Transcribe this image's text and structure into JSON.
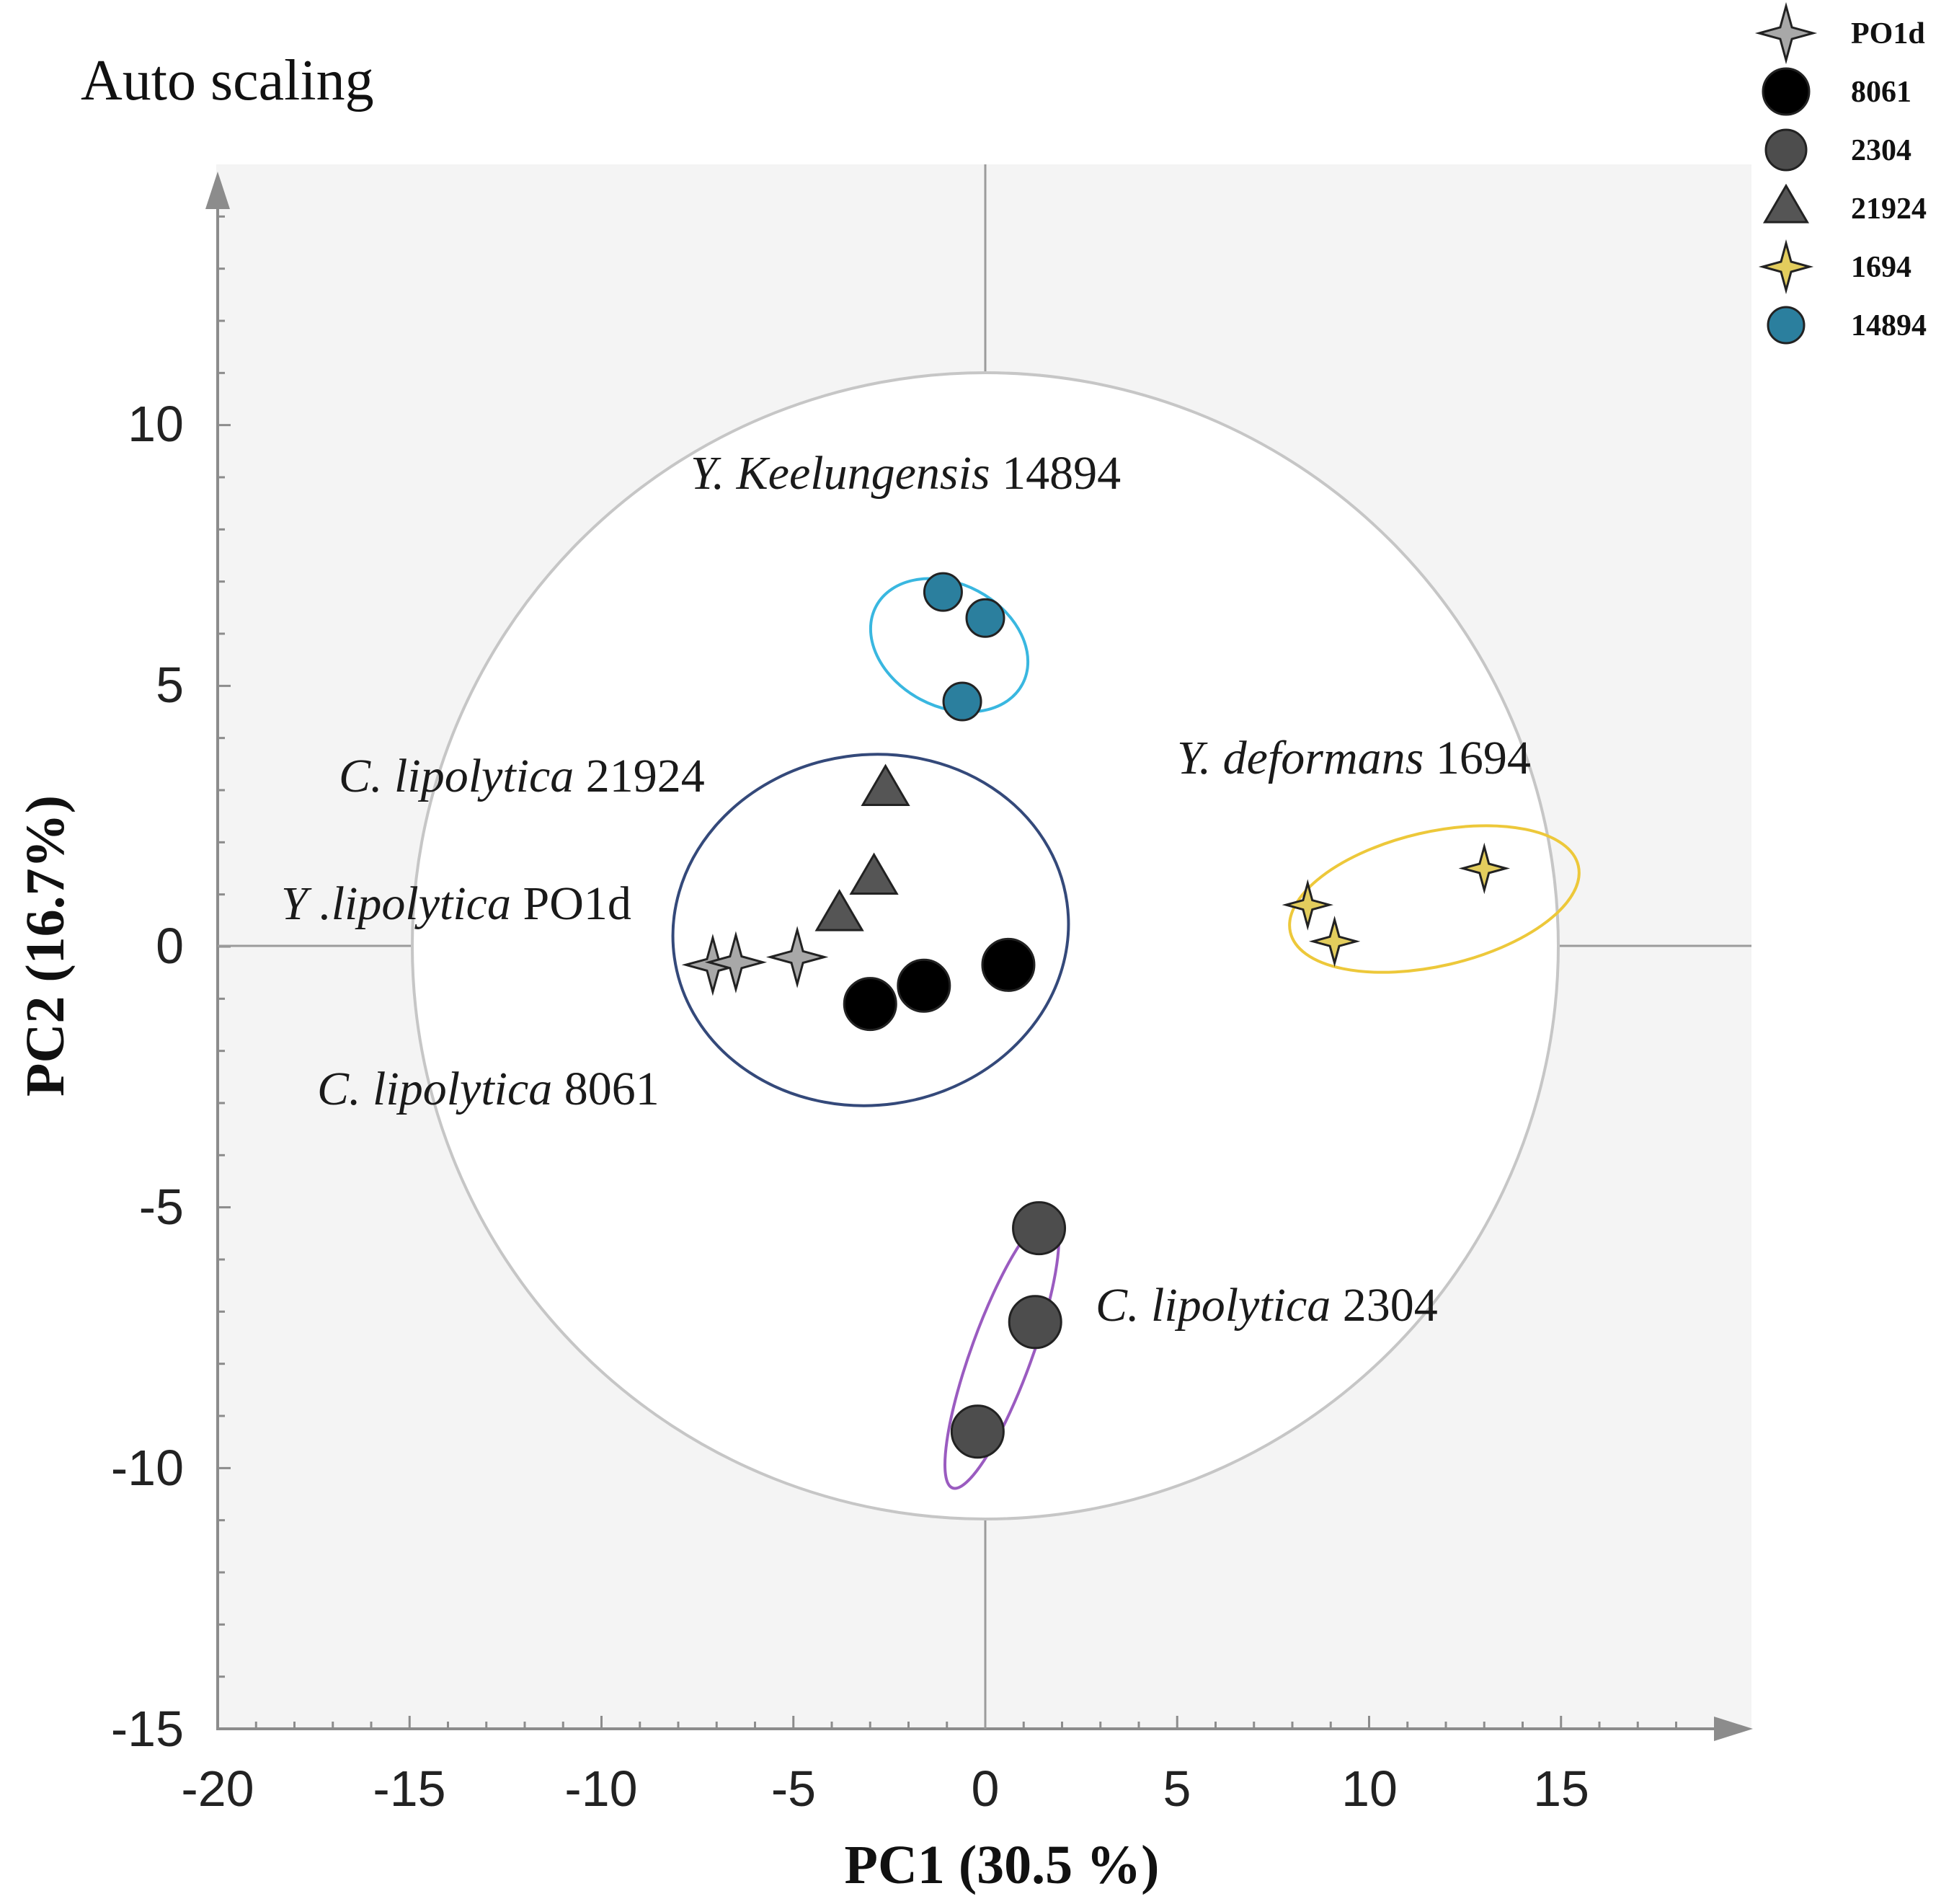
{
  "chart_data": {
    "type": "scatter",
    "title": "Auto scaling",
    "xlabel": "PC1 (30.5 %)",
    "ylabel": "PC2 (16.7%)",
    "xlim": [
      -20,
      20
    ],
    "ylim": [
      -15,
      15
    ],
    "xticks": [
      -20,
      -15,
      -10,
      -5,
      0,
      5,
      10,
      15
    ],
    "yticks": [
      -15,
      -10,
      -5,
      0,
      5,
      10
    ],
    "xtick_labels": [
      "-20",
      "-15",
      "-10",
      "-5",
      "0",
      "5",
      "10",
      "15"
    ],
    "ytick_labels": [
      "-15",
      "-10",
      "-5",
      "0",
      "5",
      "10"
    ],
    "legend_position": "top-right",
    "confidence_ellipse": {
      "center": [
        0,
        0
      ],
      "radius": 15
    },
    "series": [
      {
        "name": "PO1d",
        "marker": "star4",
        "color": "#a8a8a8",
        "x": [
          -7.1,
          -6.5,
          -4.9
        ],
        "y": [
          -0.35,
          -0.3,
          -0.2
        ]
      },
      {
        "name": "8061",
        "marker": "circle",
        "color": "#000000",
        "x": [
          -3.0,
          -1.6,
          0.6
        ],
        "y": [
          -1.1,
          -0.75,
          -0.35
        ]
      },
      {
        "name": "2304",
        "marker": "circle",
        "color": "#4d4d4d",
        "x": [
          1.4,
          1.3,
          -0.2
        ],
        "y": [
          -5.4,
          -7.2,
          -9.3
        ]
      },
      {
        "name": "21924",
        "marker": "triangle",
        "color": "#555555",
        "x": [
          -2.6,
          -2.9,
          -3.8
        ],
        "y": [
          3.0,
          1.3,
          0.6
        ]
      },
      {
        "name": "1694",
        "marker": "star4",
        "color": "#e3cd5d",
        "x": [
          8.4,
          9.1,
          13.0
        ],
        "y": [
          0.8,
          0.1,
          1.5
        ]
      },
      {
        "name": "14894",
        "marker": "circle",
        "color": "#2b7f9e",
        "x": [
          -1.1,
          0.0,
          -0.6
        ],
        "y": [
          6.8,
          6.3,
          4.7
        ]
      }
    ],
    "annotations": [
      {
        "italic": "Y. Keelungensis",
        "rest": " 14894"
      },
      {
        "italic": "C. lipolytica",
        "rest": " 21924"
      },
      {
        "italic": "Y. deformans",
        "rest": " 1694"
      },
      {
        "italic": "Y .lipolytica",
        "rest": " PO1d"
      },
      {
        "italic": "C. lipolytica",
        "rest": " 8061"
      },
      {
        "italic": "C. lipolytica",
        "rest": " 2304"
      }
    ],
    "group_ellipses": [
      {
        "name": "14894",
        "color": "#39b7e0"
      },
      {
        "name": "21924-PO1d-8061",
        "color": "#34497a"
      },
      {
        "name": "1694",
        "color": "#edc83a"
      },
      {
        "name": "2304",
        "color": "#9a5bc0"
      }
    ]
  }
}
